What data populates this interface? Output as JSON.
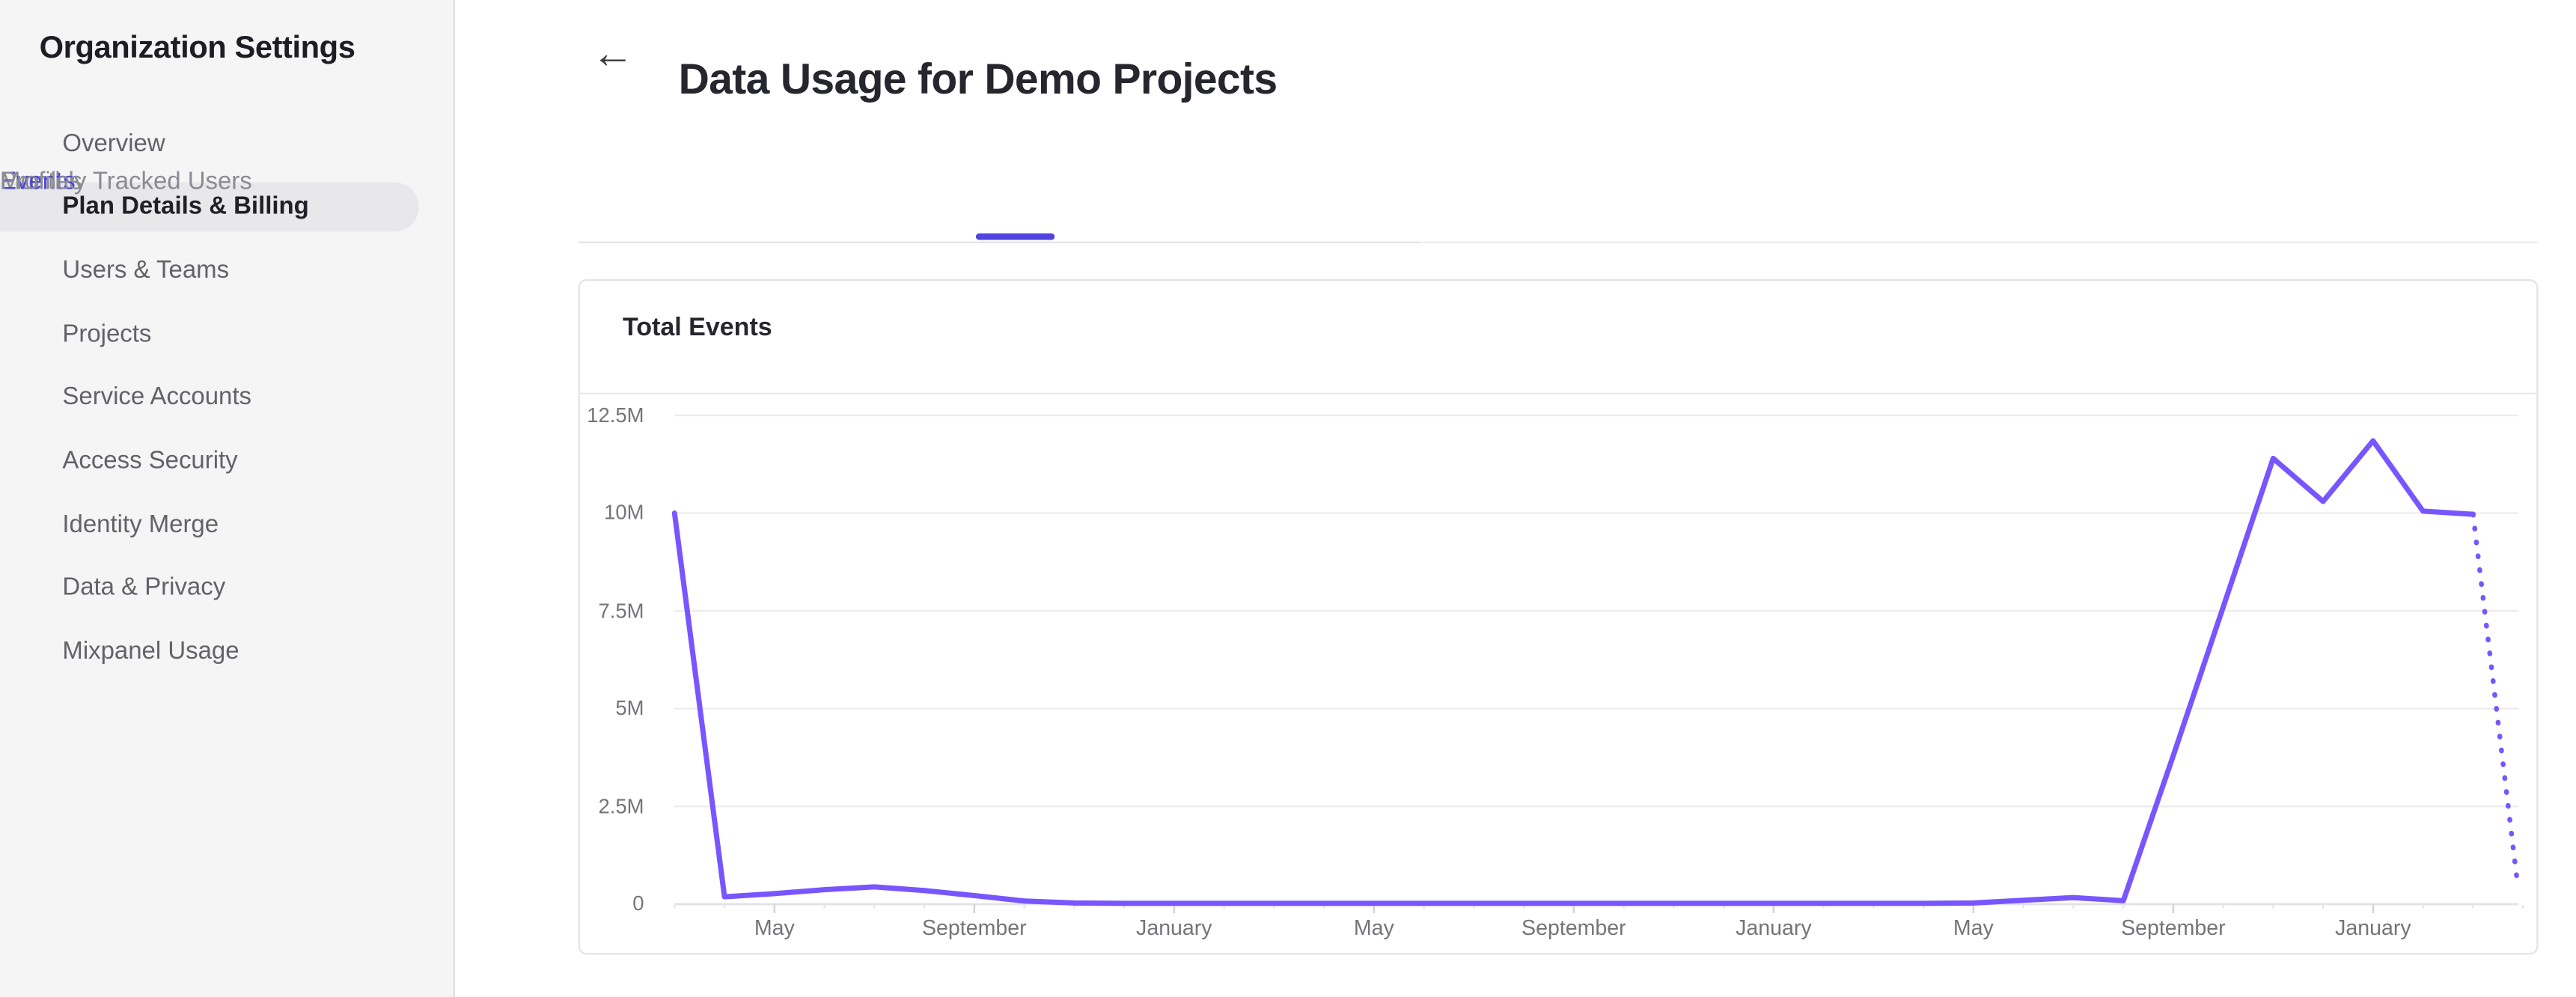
{
  "sidebar": {
    "title": "Organization Settings",
    "items": [
      {
        "label": "Overview",
        "selected": false
      },
      {
        "label": "Plan Details & Billing",
        "selected": true
      },
      {
        "label": "Users & Teams",
        "selected": false
      },
      {
        "label": "Projects",
        "selected": false
      },
      {
        "label": "Service Accounts",
        "selected": false
      },
      {
        "label": "Access Security",
        "selected": false
      },
      {
        "label": "Identity Merge",
        "selected": false
      },
      {
        "label": "Data & Privacy",
        "selected": false
      },
      {
        "label": "Mixpanel Usage",
        "selected": false
      }
    ]
  },
  "header": {
    "back_icon": "←",
    "title": "Data Usage for Demo Projects"
  },
  "tabs": [
    {
      "label": "Monthly Tracked Users",
      "active": false
    },
    {
      "label": "Events",
      "active": true
    },
    {
      "label": "Profiles",
      "active": false
    }
  ],
  "card": {
    "title": "Total Events"
  },
  "colors": {
    "accent": "#4f44e0",
    "chart_line": "#7856ff",
    "sidebar_selected_bg": "#e8e8ea",
    "grid_line": "#ededed",
    "axis_line": "#e3e3e5",
    "tick": "#d6d6d9",
    "tab_inactive": "#8b8b94"
  },
  "chart_data": {
    "type": "line",
    "title": "Total Events",
    "unit_note": "monthly total events, values in millions",
    "ylim": [
      0,
      12.5
    ],
    "y_tick_values": [
      0,
      2.5,
      5,
      7.5,
      10,
      12.5
    ],
    "y_tick_labels": [
      "0",
      "2.5M",
      "5M",
      "7.5M",
      "10M",
      "12.5M"
    ],
    "x_tick_labels": [
      "May",
      "September",
      "January",
      "May",
      "September",
      "January",
      "May",
      "September",
      "January"
    ],
    "x_tick_indices": [
      2,
      6,
      10,
      14,
      18,
      22,
      26,
      30,
      34
    ],
    "values_millions": [
      10,
      0.19,
      0.27,
      0.37,
      0.44,
      0.35,
      0.22,
      0.08,
      0.03,
      0.02,
      0.02,
      0.02,
      0.02,
      0.02,
      0.02,
      0.02,
      0.02,
      0.02,
      0.02,
      0.02,
      0.02,
      0.02,
      0.02,
      0.02,
      0.02,
      0.02,
      0.03,
      0.1,
      0.17,
      0.09,
      3.8,
      7.6,
      11.4,
      10.3,
      11.85,
      10.05,
      9.97
    ],
    "dashed_projection": {
      "from_index": 36,
      "to_index": 36.9,
      "to_value": 0.42
    },
    "grid": true,
    "legend": false
  }
}
